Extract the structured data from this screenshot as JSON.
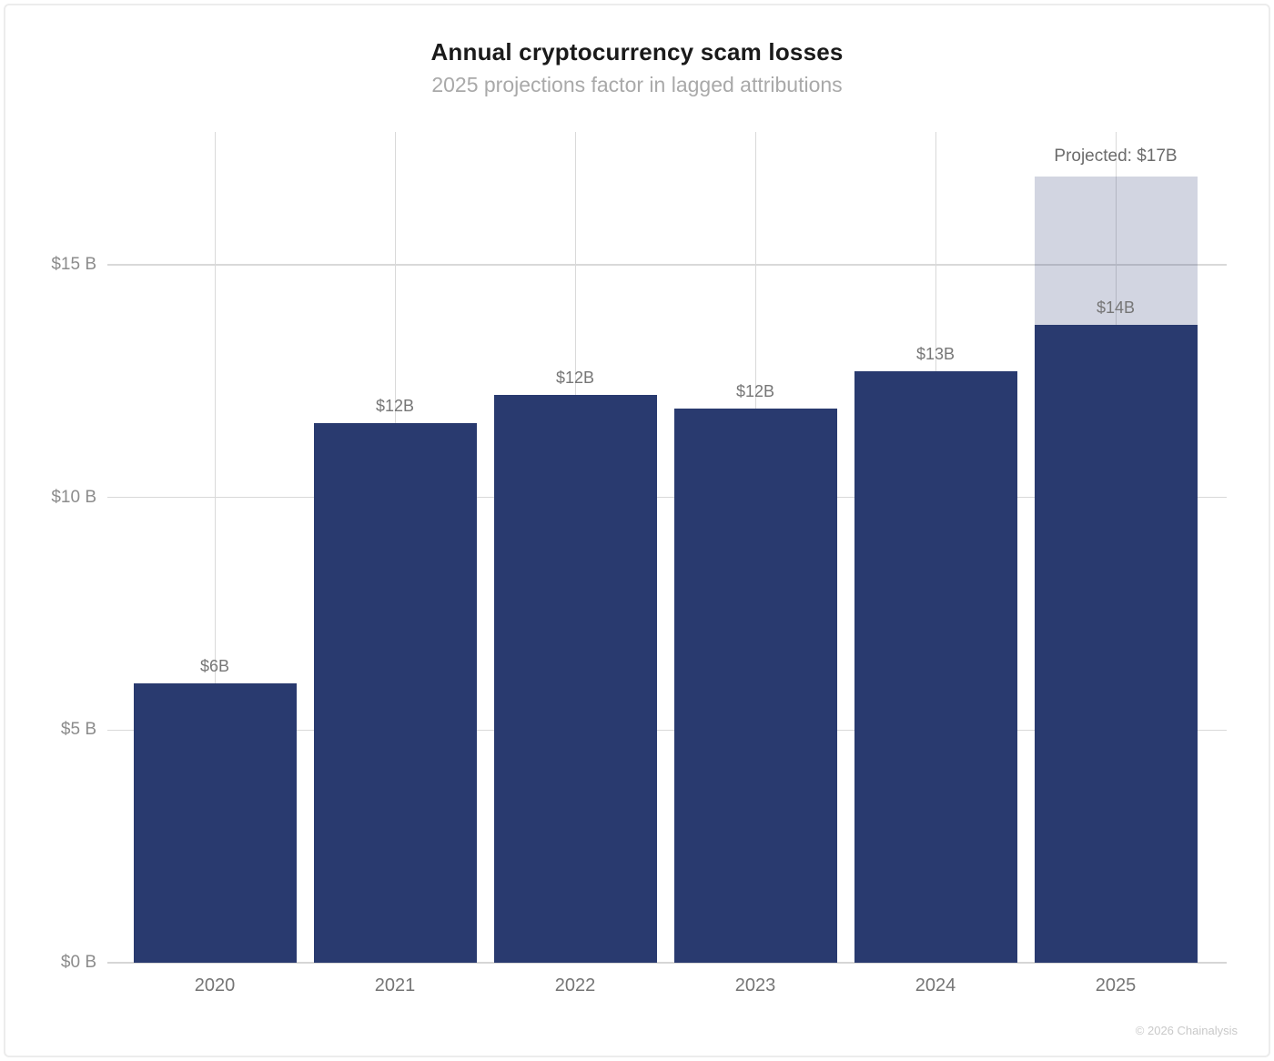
{
  "page": {
    "title": "Annual cryptocurrency scam losses",
    "subtitle": "2025 projections factor in lagged attributions",
    "footer": "© 2026 Chainalysis"
  },
  "colors": {
    "bar": "#293a6f",
    "projected_segment": "rgba(41, 58, 111, 0.21)",
    "gridline": "#d9d9d9",
    "title_text": "#1a1a1a",
    "subtitle_text": "#a9a9a9",
    "tick_text": "#8c8c8c",
    "bar_label_text": "#767676",
    "year_text": "#757575",
    "footer_text": "#c9c9c9"
  },
  "chart_data": {
    "type": "bar",
    "title": "Annual cryptocurrency scam losses",
    "subtitle": "2025 projections factor in lagged attributions",
    "categories": [
      "2020",
      "2021",
      "2022",
      "2023",
      "2024",
      "2025"
    ],
    "series": [
      {
        "name": "attributed",
        "values": [
          6.0,
          11.6,
          12.2,
          11.9,
          12.7,
          13.7
        ]
      },
      {
        "name": "projected_additional",
        "values": [
          0,
          0,
          0,
          0,
          0,
          3.2
        ]
      }
    ],
    "bar_labels": [
      "$6B",
      "$12B",
      "$12B",
      "$12B",
      "$13B",
      "$14B"
    ],
    "projected_annotation": {
      "category": "2025",
      "label": "Projected: $17B",
      "total": 17
    },
    "y_ticks": [
      {
        "value": 0,
        "label": "$0 B"
      },
      {
        "value": 5,
        "label": "$5 B"
      },
      {
        "value": 10,
        "label": "$10 B"
      },
      {
        "value": 15,
        "label": "$15 B"
      }
    ],
    "xlabel": "",
    "ylabel": "",
    "ylim": [
      0,
      17.85
    ],
    "grid": {
      "horizontal": true,
      "vertical": true
    },
    "legend": "none",
    "source": "© 2026 Chainalysis"
  }
}
